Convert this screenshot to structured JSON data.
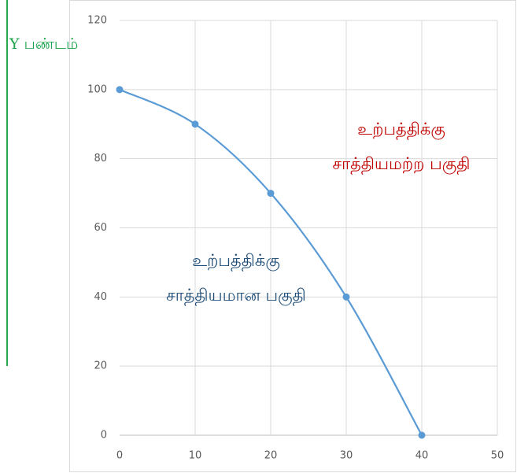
{
  "chart_data": {
    "type": "line",
    "ylabel": "Y பண்டம்",
    "x": [
      0,
      10,
      20,
      30,
      40
    ],
    "series": [
      {
        "color": "#5b9bd5",
        "values": [
          100,
          90,
          70,
          40,
          0
        ]
      }
    ],
    "xlim": [
      0,
      50
    ],
    "xticks": [
      0,
      10,
      20,
      30,
      40,
      50
    ],
    "ylim": [
      0,
      120
    ],
    "yticks": [
      0,
      20,
      40,
      60,
      80,
      100,
      120
    ],
    "grid": true,
    "annotations": [
      {
        "lines": [
          "உற்பத்திக்கு",
          "சாத்தியமற்ற  பகுதி"
        ],
        "color": "#c00000"
      },
      {
        "lines": [
          "உற்பத்திக்கு",
          "சாத்தியமான  பகுதி"
        ],
        "color": "#1f4e79"
      }
    ]
  }
}
